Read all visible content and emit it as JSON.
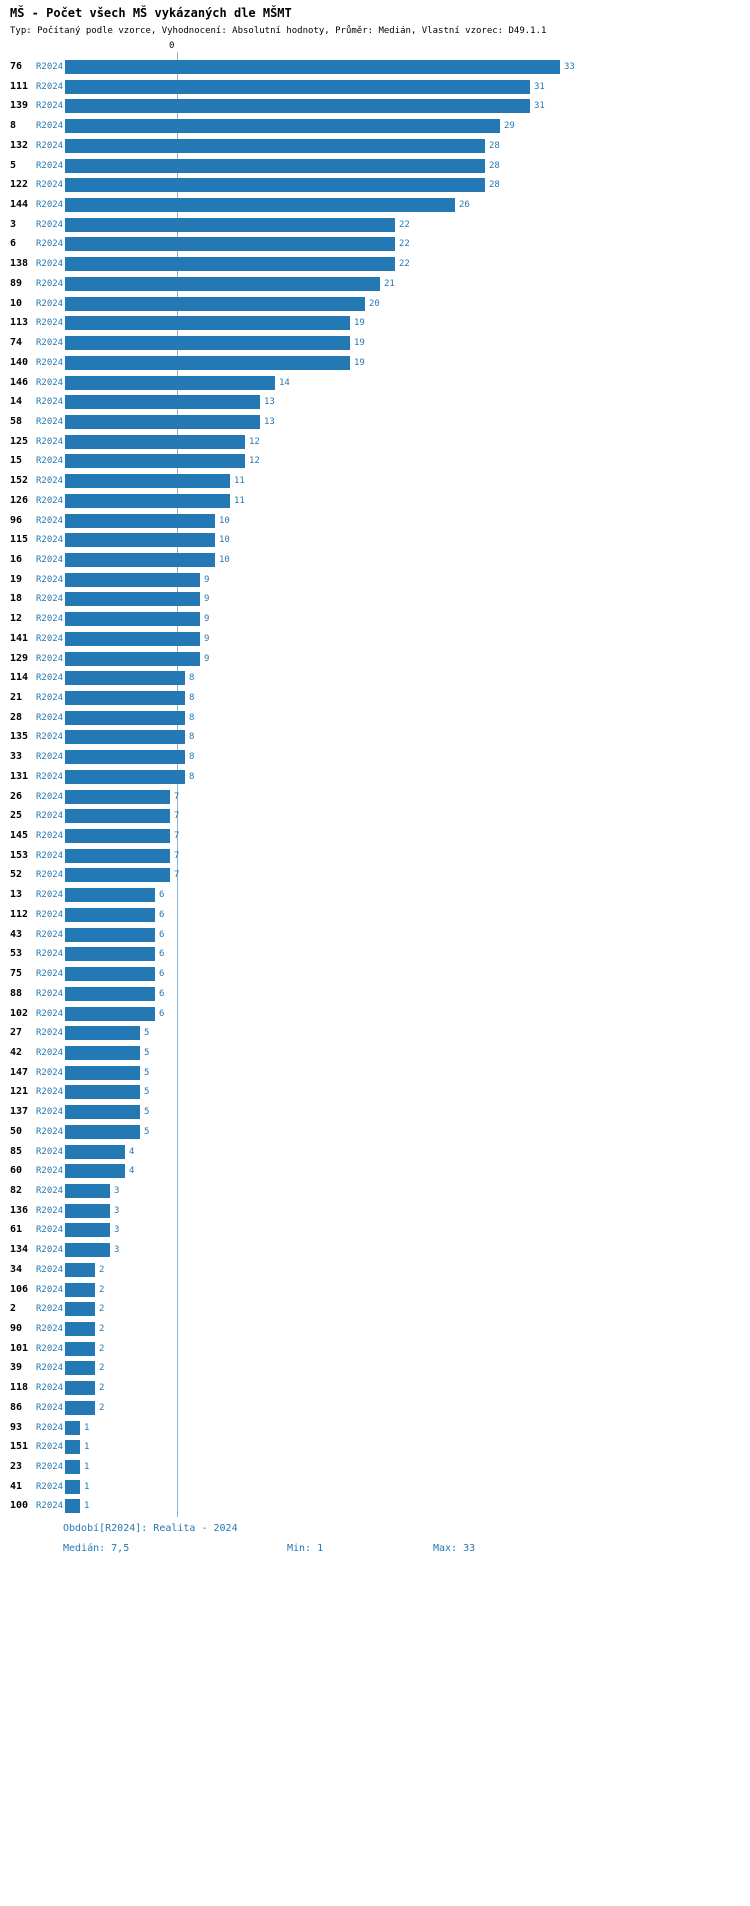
{
  "title": "MŠ - Počet všech MŠ vykázaných dle MŠMT",
  "subtitle": "Typ: Počítaný podle vzorce, Vyhodnocení: Absolutní hodnoty, Průměr: Medián, Vlastní vzorec: D49.1.1",
  "axis": {
    "zero_label": "0"
  },
  "footer": {
    "period": "Období[R2024]: Realita - 2024",
    "median": "Medián: 7,5",
    "min": "Min: 1",
    "max": "Max: 33"
  },
  "colors": {
    "bar": "#2478b4",
    "value_text": "#2478b4",
    "category_text": "#000000",
    "median_line": "#8fb2d1"
  },
  "chart_data": {
    "type": "bar",
    "orientation": "horizontal",
    "title": "MŠ - Počet všech MŠ vykázaných dle MŠMT",
    "series_label": "R2024",
    "categories": [
      "76",
      "111",
      "139",
      "8",
      "132",
      "5",
      "122",
      "144",
      "3",
      "6",
      "138",
      "89",
      "10",
      "113",
      "74",
      "140",
      "146",
      "14",
      "58",
      "125",
      "15",
      "152",
      "126",
      "96",
      "115",
      "16",
      "19",
      "18",
      "12",
      "141",
      "129",
      "114",
      "21",
      "28",
      "135",
      "33",
      "131",
      "26",
      "25",
      "145",
      "153",
      "52",
      "13",
      "112",
      "43",
      "53",
      "75",
      "88",
      "102",
      "27",
      "42",
      "147",
      "121",
      "137",
      "50",
      "85",
      "60",
      "82",
      "136",
      "61",
      "134",
      "34",
      "106",
      "2",
      "90",
      "101",
      "39",
      "118",
      "86",
      "93",
      "151",
      "23",
      "41",
      "100"
    ],
    "values": [
      33,
      31,
      31,
      29,
      28,
      28,
      28,
      26,
      22,
      22,
      22,
      21,
      20,
      19,
      19,
      19,
      14,
      13,
      13,
      12,
      12,
      11,
      11,
      10,
      10,
      10,
      9,
      9,
      9,
      9,
      9,
      8,
      8,
      8,
      8,
      8,
      8,
      7,
      7,
      7,
      7,
      7,
      6,
      6,
      6,
      6,
      6,
      6,
      6,
      5,
      5,
      5,
      5,
      5,
      5,
      4,
      4,
      3,
      3,
      3,
      3,
      2,
      2,
      2,
      2,
      2,
      2,
      2,
      2,
      1,
      1,
      1,
      1,
      1
    ],
    "xlim": [
      0,
      33
    ],
    "median": 7.5,
    "min": 1,
    "max": 33,
    "grid": false,
    "legend": "none"
  }
}
